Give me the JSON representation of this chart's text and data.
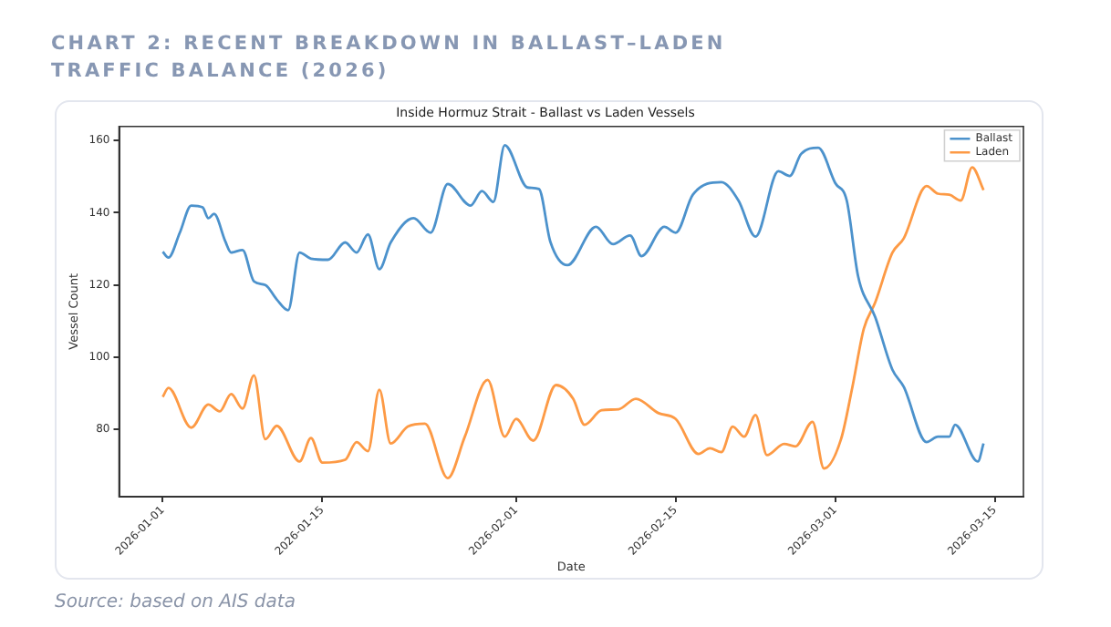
{
  "chart_data": {
    "type": "line",
    "title": "CHART 2: RECENT BREAKDOWN IN BALLAST–LADEN TRAFFIC BALANCE (2026)",
    "subtitle": "Inside Hormuz Strait - Ballast vs Laden Vessels",
    "xlabel": "Date",
    "ylabel": "Vessel Count",
    "xlim": [
      "2025-12-28T04:00",
      "2026-03-17T12:00"
    ],
    "xticks": [
      "2026-01-01",
      "2026-01-15",
      "2026-02-01",
      "2026-02-15",
      "2026-03-01",
      "2026-03-15"
    ],
    "ylim": [
      61.4,
      163.9
    ],
    "yticks": [
      80,
      100,
      120,
      140,
      160
    ],
    "grid": false,
    "legend": "top right",
    "marker": "none",
    "line_style": "solid",
    "series": [
      {
        "name": "Ballast",
        "color": "#4c92cc",
        "x": [
          "2026-01-01",
          "2026-01-01T12:00",
          "2026-01-02T12:00",
          "2026-01-03T12:00",
          "2026-01-04T12:00",
          "2026-01-05",
          "2026-01-05T12:00",
          "2026-01-06T12:00",
          "2026-01-07",
          "2026-01-08",
          "2026-01-09",
          "2026-01-10",
          "2026-01-11",
          "2026-01-12",
          "2026-01-13",
          "2026-01-14",
          "2026-01-15T12:00",
          "2026-01-17",
          "2026-01-18",
          "2026-01-19",
          "2026-01-20",
          "2026-01-21",
          "2026-01-23",
          "2026-01-24T12:00",
          "2026-01-26",
          "2026-01-28",
          "2026-01-29",
          "2026-01-30",
          "2026-01-31",
          "2026-02-02",
          "2026-02-03",
          "2026-02-04",
          "2026-02-05T12:00",
          "2026-02-08",
          "2026-02-09T12:00",
          "2026-02-11",
          "2026-02-12",
          "2026-02-14",
          "2026-02-15",
          "2026-02-16T12:00",
          "2026-02-19",
          "2026-02-20T12:00",
          "2026-02-22",
          "2026-02-24",
          "2026-02-25",
          "2026-02-26",
          "2026-02-27T12:00",
          "2026-03-01",
          "2026-03-02",
          "2026-03-03",
          "2026-03-04T12:00",
          "2026-03-06",
          "2026-03-07",
          "2026-03-09",
          "2026-03-10",
          "2026-03-11",
          "2026-03-11T12:00",
          "2026-03-13T12:00",
          "2026-03-14"
        ],
        "values": [
          129.2,
          127.6,
          134.5,
          142,
          141.5,
          138.5,
          139.7,
          132,
          129,
          129.7,
          121,
          120,
          116,
          113,
          129,
          127.3,
          127,
          131.8,
          129,
          134,
          124.4,
          131.8,
          138.5,
          134.5,
          148,
          142,
          146,
          143,
          158.7,
          147,
          146.6,
          132,
          125.5,
          136.1,
          131.3,
          133.7,
          128,
          136.1,
          134.5,
          145,
          148.5,
          143.4,
          133.4,
          151.5,
          150.2,
          156.3,
          158,
          148.2,
          143.4,
          122.4,
          111.1,
          96.6,
          91.8,
          76.5,
          78,
          78,
          81.3,
          71.1,
          76.1
        ]
      },
      {
        "name": "Laden",
        "color": "#fd9a45",
        "x": [
          "2026-01-01",
          "2026-01-01T12:00",
          "2026-01-03T12:00",
          "2026-01-05",
          "2026-01-06",
          "2026-01-07",
          "2026-01-08",
          "2026-01-09",
          "2026-01-10",
          "2026-01-11",
          "2026-01-13",
          "2026-01-14",
          "2026-01-15",
          "2026-01-17",
          "2026-01-18",
          "2026-01-19",
          "2026-01-20",
          "2026-01-21",
          "2026-01-22T12:00",
          "2026-01-24",
          "2026-01-26",
          "2026-01-27T12:00",
          "2026-01-29T12:00",
          "2026-01-31",
          "2026-02-01",
          "2026-02-02T12:00",
          "2026-02-04T12:00",
          "2026-02-06",
          "2026-02-07",
          "2026-02-08T12:00",
          "2026-02-10",
          "2026-02-11T12:00",
          "2026-02-13T12:00",
          "2026-02-15",
          "2026-02-17",
          "2026-02-18",
          "2026-02-19",
          "2026-02-20",
          "2026-02-21",
          "2026-02-22",
          "2026-02-23",
          "2026-02-24T12:00",
          "2026-02-25T12:00",
          "2026-02-27",
          "2026-02-28",
          "2026-03-01T12:00",
          "2026-03-02T12:00",
          "2026-03-03T12:00",
          "2026-03-04T12:00",
          "2026-03-06",
          "2026-03-07",
          "2026-03-09",
          "2026-03-10",
          "2026-03-11",
          "2026-03-12",
          "2026-03-13",
          "2026-03-14"
        ],
        "values": [
          89,
          91.5,
          80.5,
          86.9,
          85,
          89.8,
          85.8,
          95,
          77.3,
          81,
          71.1,
          77.6,
          70.8,
          71.6,
          76.5,
          74,
          91,
          76.1,
          80.8,
          81.6,
          66.5,
          78,
          93.7,
          78,
          82.9,
          76.9,
          92.3,
          88.5,
          81.3,
          85.3,
          85.6,
          88.5,
          84.5,
          82.9,
          73.2,
          74.8,
          73.7,
          80.8,
          78,
          84,
          72.9,
          76,
          75.3,
          82.1,
          69.2,
          77.3,
          91.8,
          107.9,
          115.2,
          128.9,
          132.9,
          147.4,
          145.3,
          145,
          143.4,
          152.6,
          146.3
        ]
      }
    ],
    "annotations": [
      "Source: based on AIS data"
    ]
  }
}
